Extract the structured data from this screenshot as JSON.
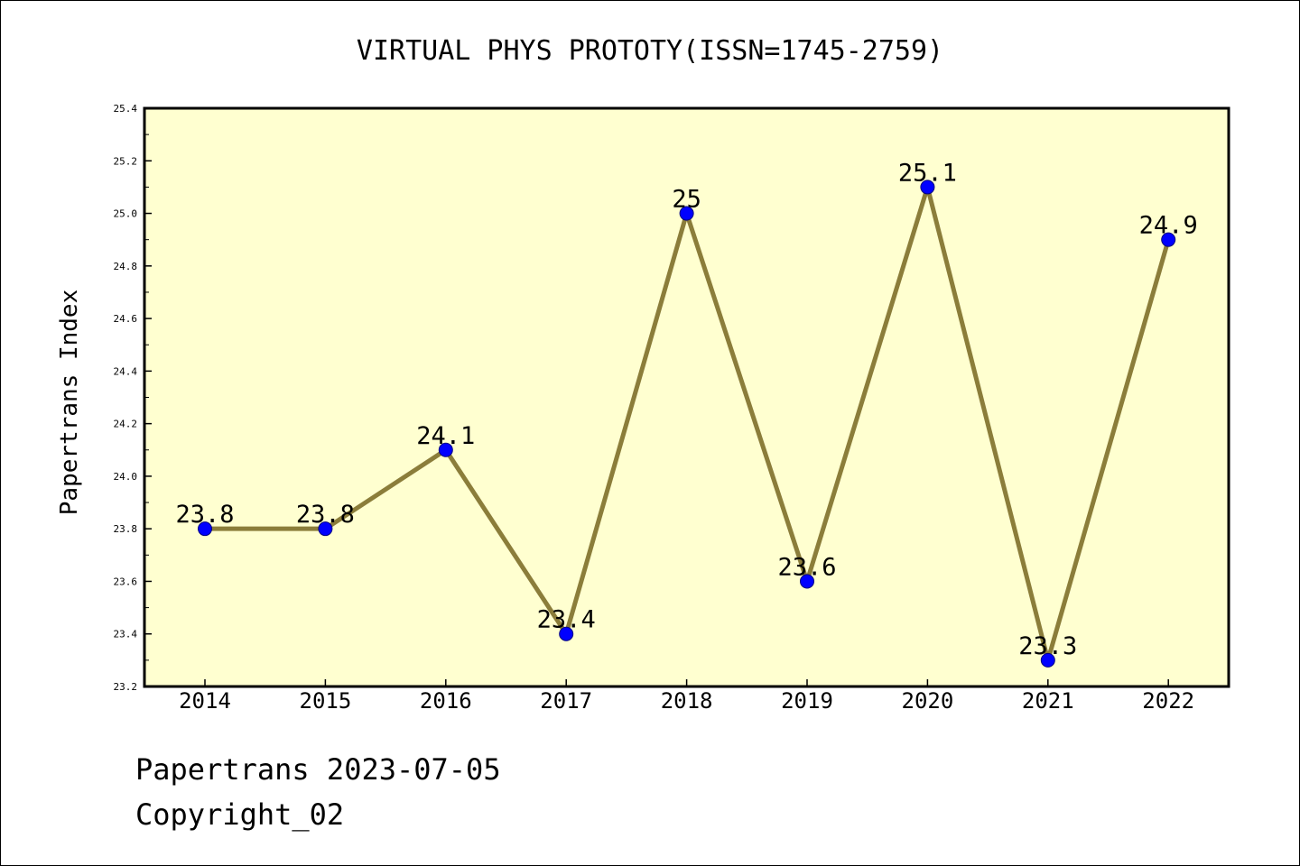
{
  "chart_data": {
    "type": "line",
    "title": "VIRTUAL PHYS PROTOTY(ISSN=1745-2759)",
    "xlabel": "",
    "ylabel": "Papertrans Index",
    "categories": [
      "2014",
      "2015",
      "2016",
      "2017",
      "2018",
      "2019",
      "2020",
      "2021",
      "2022"
    ],
    "series": [
      {
        "values": [
          23.8,
          23.8,
          24.1,
          23.4,
          25.0,
          23.6,
          25.1,
          23.3,
          24.9
        ],
        "data_labels": [
          "23.8",
          "23.8",
          "24.1",
          "23.4",
          "25",
          "23.6",
          "25.1",
          "23.3",
          "24.9"
        ]
      }
    ],
    "ylim": [
      23.2,
      25.4
    ],
    "yticks": [
      "23.2",
      "23.4",
      "23.6",
      "23.8",
      "24.0",
      "24.2",
      "24.4",
      "24.6",
      "24.8",
      "25.0",
      "25.2",
      "25.4"
    ],
    "grid": false,
    "legend": "none",
    "colors": {
      "plot_background": "#ffffd0",
      "line": "#8b7d3a",
      "marker": "#0000ff",
      "marker_edge": "#000080"
    }
  },
  "footer": {
    "line1": "Papertrans 2023-07-05",
    "line2": "Copyright_02"
  }
}
